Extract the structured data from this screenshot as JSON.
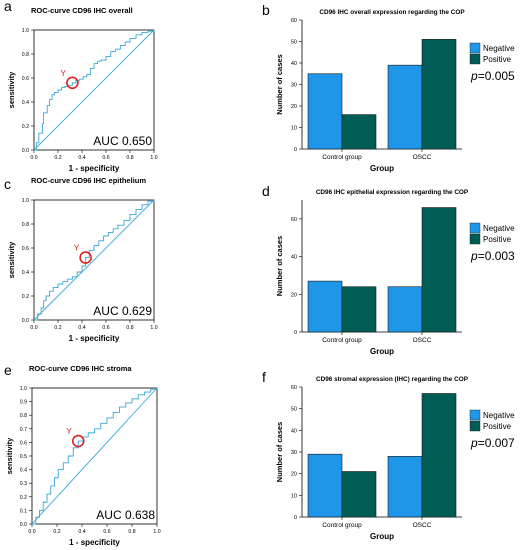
{
  "chart_data": [
    {
      "panel": "a",
      "type": "line",
      "title": "ROC-curve CD96 IHC overall",
      "xlabel": "1 - specificity",
      "ylabel": "sensitivity",
      "xlim": [
        0,
        1
      ],
      "ylim": [
        0,
        1
      ],
      "xticks": [
        "0.0",
        "0.2",
        "0.4",
        "0.6",
        "0.8",
        "1.0"
      ],
      "yticks": [
        "0.0",
        "0.2",
        "0.4",
        "0.6",
        "0.8",
        "1.0"
      ],
      "annotation": "AUC 0.650",
      "marker_label": "Y",
      "marker": [
        0.32,
        0.56
      ],
      "curve": [
        [
          0,
          0
        ],
        [
          0.02,
          0.06
        ],
        [
          0.04,
          0.14
        ],
        [
          0.07,
          0.22
        ],
        [
          0.08,
          0.31
        ],
        [
          0.11,
          0.37
        ],
        [
          0.13,
          0.42
        ],
        [
          0.15,
          0.46
        ],
        [
          0.17,
          0.48
        ],
        [
          0.2,
          0.5
        ],
        [
          0.23,
          0.52
        ],
        [
          0.26,
          0.53
        ],
        [
          0.29,
          0.54
        ],
        [
          0.32,
          0.56
        ],
        [
          0.35,
          0.58
        ],
        [
          0.38,
          0.59
        ],
        [
          0.41,
          0.61
        ],
        [
          0.44,
          0.63
        ],
        [
          0.47,
          0.68
        ],
        [
          0.5,
          0.72
        ],
        [
          0.53,
          0.74
        ],
        [
          0.56,
          0.75
        ],
        [
          0.6,
          0.78
        ],
        [
          0.64,
          0.82
        ],
        [
          0.68,
          0.84
        ],
        [
          0.72,
          0.87
        ],
        [
          0.76,
          0.9
        ],
        [
          0.8,
          0.93
        ],
        [
          0.85,
          0.96
        ],
        [
          0.9,
          0.98
        ],
        [
          0.95,
          0.99
        ],
        [
          1,
          1
        ]
      ],
      "grid": false
    },
    {
      "panel": "b",
      "type": "bar",
      "title": "CD96 IHC overall expression regarding the COP",
      "xlabel": "Group",
      "ylabel": "Number of cases",
      "categories": [
        "Control group",
        "OSCC"
      ],
      "series": [
        {
          "name": "Negative",
          "values": [
            35,
            39
          ],
          "color": "#1f97e8"
        },
        {
          "name": "Positive",
          "values": [
            16,
            51
          ],
          "color": "#005d56"
        }
      ],
      "ylim": [
        0,
        60
      ],
      "yticks": [
        "0",
        "10",
        "20",
        "30",
        "40",
        "50",
        "60"
      ],
      "legend": "top-right",
      "annotation_italic": "p",
      "annotation_rest": "=0.005"
    },
    {
      "panel": "c",
      "type": "line",
      "title": "ROC-curve CD96 IHC epithelium",
      "xlabel": "1 - specificity",
      "ylabel": "sensitivity",
      "xlim": [
        0,
        1
      ],
      "ylim": [
        0,
        1
      ],
      "xticks": [
        "0.0",
        "0.2",
        "0.4",
        "0.6",
        "0.8",
        "1.0"
      ],
      "yticks": [
        "0.0",
        "0.2",
        "0.4",
        "0.6",
        "0.8",
        "1.0"
      ],
      "annotation": "AUC 0.629",
      "marker_label": "Y",
      "marker": [
        0.43,
        0.52
      ],
      "curve": [
        [
          0,
          0
        ],
        [
          0.03,
          0.05
        ],
        [
          0.06,
          0.1
        ],
        [
          0.08,
          0.16
        ],
        [
          0.1,
          0.2
        ],
        [
          0.13,
          0.24
        ],
        [
          0.16,
          0.27
        ],
        [
          0.2,
          0.3
        ],
        [
          0.24,
          0.32
        ],
        [
          0.28,
          0.34
        ],
        [
          0.32,
          0.36
        ],
        [
          0.36,
          0.4
        ],
        [
          0.4,
          0.45
        ],
        [
          0.43,
          0.52
        ],
        [
          0.46,
          0.58
        ],
        [
          0.5,
          0.62
        ],
        [
          0.54,
          0.66
        ],
        [
          0.58,
          0.7
        ],
        [
          0.62,
          0.73
        ],
        [
          0.66,
          0.76
        ],
        [
          0.7,
          0.79
        ],
        [
          0.75,
          0.83
        ],
        [
          0.8,
          0.88
        ],
        [
          0.85,
          0.92
        ],
        [
          0.9,
          0.96
        ],
        [
          0.95,
          0.99
        ],
        [
          1,
          1
        ]
      ],
      "grid": false
    },
    {
      "panel": "d",
      "type": "bar",
      "title": "CD96 IHC epithelial expression regarding the COP",
      "xlabel": "Group",
      "ylabel": "Number of cases",
      "categories": [
        "Control group",
        "OSCC"
      ],
      "series": [
        {
          "name": "Negative",
          "values": [
            27,
            24
          ],
          "color": "#1f97e8"
        },
        {
          "name": "Positive",
          "values": [
            24,
            66
          ],
          "color": "#005d56"
        }
      ],
      "ylim": [
        0,
        70
      ],
      "yticks": [
        "0",
        "20",
        "40",
        "60"
      ],
      "legend": "top-right",
      "annotation_italic": "p",
      "annotation_rest": "=0.003"
    },
    {
      "panel": "e",
      "type": "line",
      "title": "ROC-curve CD96 IHC stroma",
      "xlabel": "1 - specificity",
      "ylabel": "sensitivity",
      "xlim": [
        0,
        1
      ],
      "ylim": [
        0,
        1
      ],
      "xticks": [
        "0.0",
        "0.2",
        "0.4",
        "0.6",
        "0.8",
        "1.0"
      ],
      "yticks": [
        "0.0",
        "0.1",
        "0.2",
        "0.3",
        "0.4",
        "0.5",
        "0.6",
        "0.7",
        "0.8",
        "0.9",
        "1.0"
      ],
      "annotation": "AUC 0.638",
      "marker_label": "Y",
      "marker": [
        0.37,
        0.61
      ],
      "curve": [
        [
          0,
          0
        ],
        [
          0.03,
          0.05
        ],
        [
          0.06,
          0.1
        ],
        [
          0.09,
          0.16
        ],
        [
          0.12,
          0.22
        ],
        [
          0.15,
          0.28
        ],
        [
          0.18,
          0.34
        ],
        [
          0.21,
          0.4
        ],
        [
          0.25,
          0.45
        ],
        [
          0.29,
          0.5
        ],
        [
          0.33,
          0.56
        ],
        [
          0.37,
          0.61
        ],
        [
          0.41,
          0.64
        ],
        [
          0.45,
          0.67
        ],
        [
          0.5,
          0.7
        ],
        [
          0.55,
          0.74
        ],
        [
          0.6,
          0.78
        ],
        [
          0.65,
          0.82
        ],
        [
          0.7,
          0.86
        ],
        [
          0.75,
          0.89
        ],
        [
          0.8,
          0.92
        ],
        [
          0.85,
          0.95
        ],
        [
          0.9,
          0.97
        ],
        [
          0.95,
          0.99
        ],
        [
          1,
          1
        ]
      ],
      "grid": false
    },
    {
      "panel": "f",
      "type": "bar",
      "title": "CD96 stromal expression (IHC) regarding the COP",
      "xlabel": "Group",
      "ylabel": "Number of cases",
      "categories": [
        "Control group",
        "OSCC"
      ],
      "series": [
        {
          "name": "Negative",
          "values": [
            29,
            28
          ],
          "color": "#1f97e8"
        },
        {
          "name": "Positive",
          "values": [
            21,
            57
          ],
          "color": "#005d56"
        }
      ],
      "ylim": [
        0,
        60
      ],
      "yticks": [
        "0",
        "10",
        "20",
        "30",
        "40",
        "50",
        "60"
      ],
      "legend": "top-right",
      "annotation_italic": "p",
      "annotation_rest": "=0.007"
    }
  ],
  "colors": {
    "roc_line": "#39a9d6",
    "marker": "#dd2222",
    "axis": "#000000"
  }
}
